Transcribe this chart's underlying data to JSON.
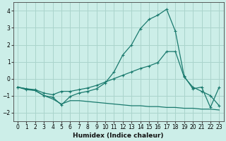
{
  "xlabel": "Humidex (Indice chaleur)",
  "background_color": "#cceee8",
  "grid_color": "#aad4cc",
  "line_color": "#1a7a6e",
  "xlim": [
    -0.5,
    23.5
  ],
  "ylim": [
    -2.5,
    4.5
  ],
  "xticks": [
    0,
    1,
    2,
    3,
    4,
    5,
    6,
    7,
    8,
    9,
    10,
    11,
    12,
    13,
    14,
    15,
    16,
    17,
    18,
    19,
    20,
    21,
    22,
    23
  ],
  "yticks": [
    -2,
    -1,
    0,
    1,
    2,
    3,
    4
  ],
  "line1_x": [
    0,
    1,
    2,
    3,
    4,
    5,
    6,
    7,
    8,
    9,
    10,
    11,
    12,
    13,
    14,
    15,
    16,
    17,
    18,
    19,
    20,
    21,
    22,
    23
  ],
  "line1_y": [
    -0.5,
    -0.6,
    -0.65,
    -0.85,
    -0.95,
    -0.75,
    -0.75,
    -0.65,
    -0.55,
    -0.4,
    -0.2,
    -0.0,
    0.2,
    0.4,
    0.6,
    0.75,
    0.95,
    1.6,
    1.6,
    0.1,
    -0.5,
    -0.75,
    -1.0,
    -1.6
  ],
  "line2_x": [
    0,
    1,
    2,
    3,
    4,
    5,
    6,
    7,
    8,
    9,
    10,
    11,
    12,
    13,
    14,
    15,
    16,
    17,
    18,
    19,
    20,
    21,
    22,
    23
  ],
  "line2_y": [
    -0.5,
    -0.65,
    -0.7,
    -1.0,
    -1.1,
    -1.55,
    -1.05,
    -0.85,
    -0.75,
    -0.6,
    -0.25,
    0.4,
    1.4,
    2.0,
    2.95,
    3.5,
    3.75,
    4.1,
    2.8,
    0.15,
    -0.6,
    -0.5,
    -1.7,
    -0.5
  ],
  "line3_x": [
    0,
    1,
    2,
    3,
    4,
    5,
    6,
    7,
    8,
    9,
    10,
    11,
    12,
    13,
    14,
    15,
    16,
    17,
    18,
    19,
    20,
    21,
    22,
    23
  ],
  "line3_y": [
    -0.5,
    -0.6,
    -0.7,
    -1.0,
    -1.2,
    -1.5,
    -1.3,
    -1.3,
    -1.35,
    -1.4,
    -1.45,
    -1.5,
    -1.55,
    -1.6,
    -1.6,
    -1.65,
    -1.65,
    -1.7,
    -1.7,
    -1.75,
    -1.75,
    -1.8,
    -1.8,
    -1.85
  ]
}
